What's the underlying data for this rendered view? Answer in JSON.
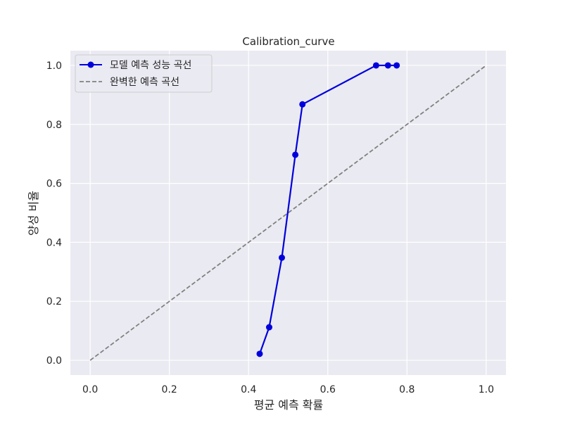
{
  "chart_data": {
    "type": "line",
    "title": "Calibration_curve",
    "xlabel": "평균 예측 확률",
    "ylabel": "양성 비율",
    "xlim": [
      -0.05,
      1.05
    ],
    "ylim": [
      -0.05,
      1.05
    ],
    "xticks": [
      "0.0",
      "0.2",
      "0.4",
      "0.6",
      "0.8",
      "1.0"
    ],
    "yticks": [
      "0.0",
      "0.2",
      "0.4",
      "0.6",
      "0.8",
      "1.0"
    ],
    "grid": true,
    "legend_position": "top-left",
    "background": "#eaeaf2",
    "series": [
      {
        "name": "모델 예측 성능 곡선",
        "color": "#0000dd",
        "style": "solid-with-markers",
        "x": [
          0.428,
          0.452,
          0.484,
          0.518,
          0.536,
          0.722,
          0.752,
          0.774
        ],
        "y": [
          0.022,
          0.112,
          0.348,
          0.697,
          0.868,
          1.0,
          1.0,
          1.0
        ]
      },
      {
        "name": "완벽한 예측 곡선",
        "color": "#808080",
        "style": "dashed",
        "x": [
          0.0,
          1.0
        ],
        "y": [
          0.0,
          1.0
        ]
      }
    ]
  }
}
